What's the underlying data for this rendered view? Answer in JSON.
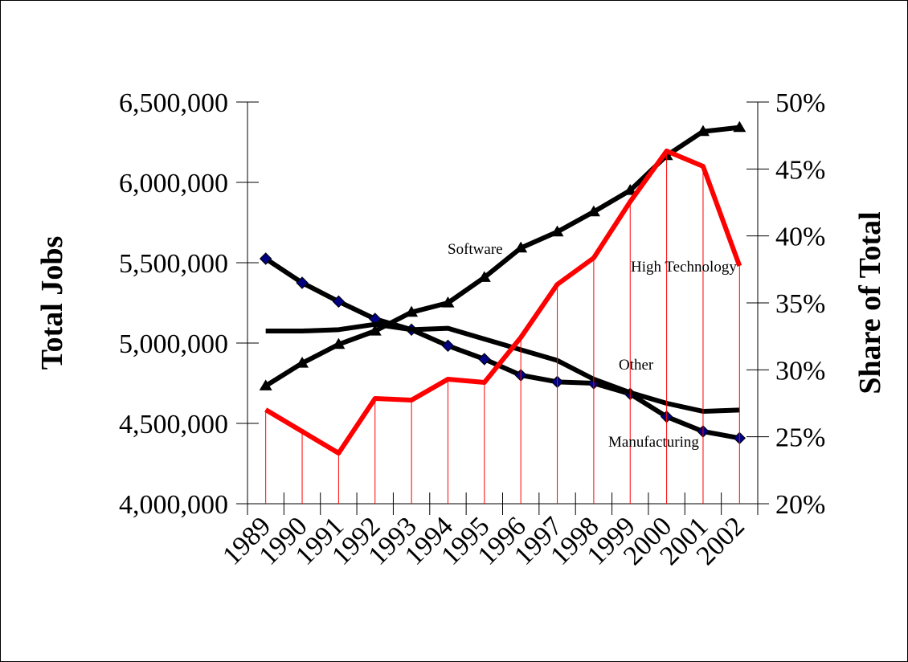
{
  "chart_data": {
    "type": "line",
    "categories": [
      "1989",
      "1990",
      "1991",
      "1992",
      "1993",
      "1994",
      "1995",
      "1996",
      "1997",
      "1998",
      "1999",
      "2000",
      "2001",
      "2002"
    ],
    "ylabel_left": "Total Jobs",
    "ylabel_right": "Share of Total",
    "ylim_left": [
      4000000,
      6500000
    ],
    "ylim_right": [
      20,
      50
    ],
    "yticks_left": [
      "4,000,000",
      "4,500,000",
      "5,000,000",
      "5,500,000",
      "6,000,000",
      "6,500,000"
    ],
    "yticks_right": [
      "20%",
      "25%",
      "30%",
      "35%",
      "40%",
      "45%",
      "50%"
    ],
    "grid": false,
    "series": [
      {
        "name": "Software",
        "axis": "right",
        "color": "#000000",
        "marker": "triangle",
        "values": [
          28.8,
          30.5,
          31.9,
          32.9,
          34.3,
          35.0,
          36.9,
          39.1,
          40.3,
          41.8,
          43.4,
          46.0,
          47.8,
          48.1
        ]
      },
      {
        "name": "Manufacturing",
        "axis": "right",
        "color": "#000000",
        "marker": "diamond",
        "values": [
          38.3,
          36.5,
          35.1,
          33.8,
          33.0,
          31.8,
          30.8,
          29.6,
          29.1,
          29.0,
          28.2,
          26.5,
          25.4,
          24.9
        ]
      },
      {
        "name": "Other",
        "axis": "right",
        "color": "#000000",
        "marker": "none",
        "values": [
          32.9,
          32.9,
          33.0,
          33.4,
          33.0,
          33.1,
          32.3,
          31.5,
          30.7,
          29.3,
          28.3,
          27.5,
          26.9,
          27.0
        ]
      },
      {
        "name": "High Technology",
        "axis": "left",
        "color": "#ff0000",
        "marker": "none",
        "drop_lines": true,
        "values": [
          4585000,
          4450000,
          4315000,
          4655000,
          4645000,
          4775000,
          4755000,
          5035000,
          5365000,
          5530000,
          5880000,
          6195000,
          6100000,
          5480000
        ]
      }
    ],
    "annotations": [
      {
        "text": "Software",
        "series": "Software"
      },
      {
        "text": "High Technology",
        "series": "High Technology"
      },
      {
        "text": "Other",
        "series": "Other"
      },
      {
        "text": "Manufacturing",
        "series": "Manufacturing"
      }
    ]
  }
}
